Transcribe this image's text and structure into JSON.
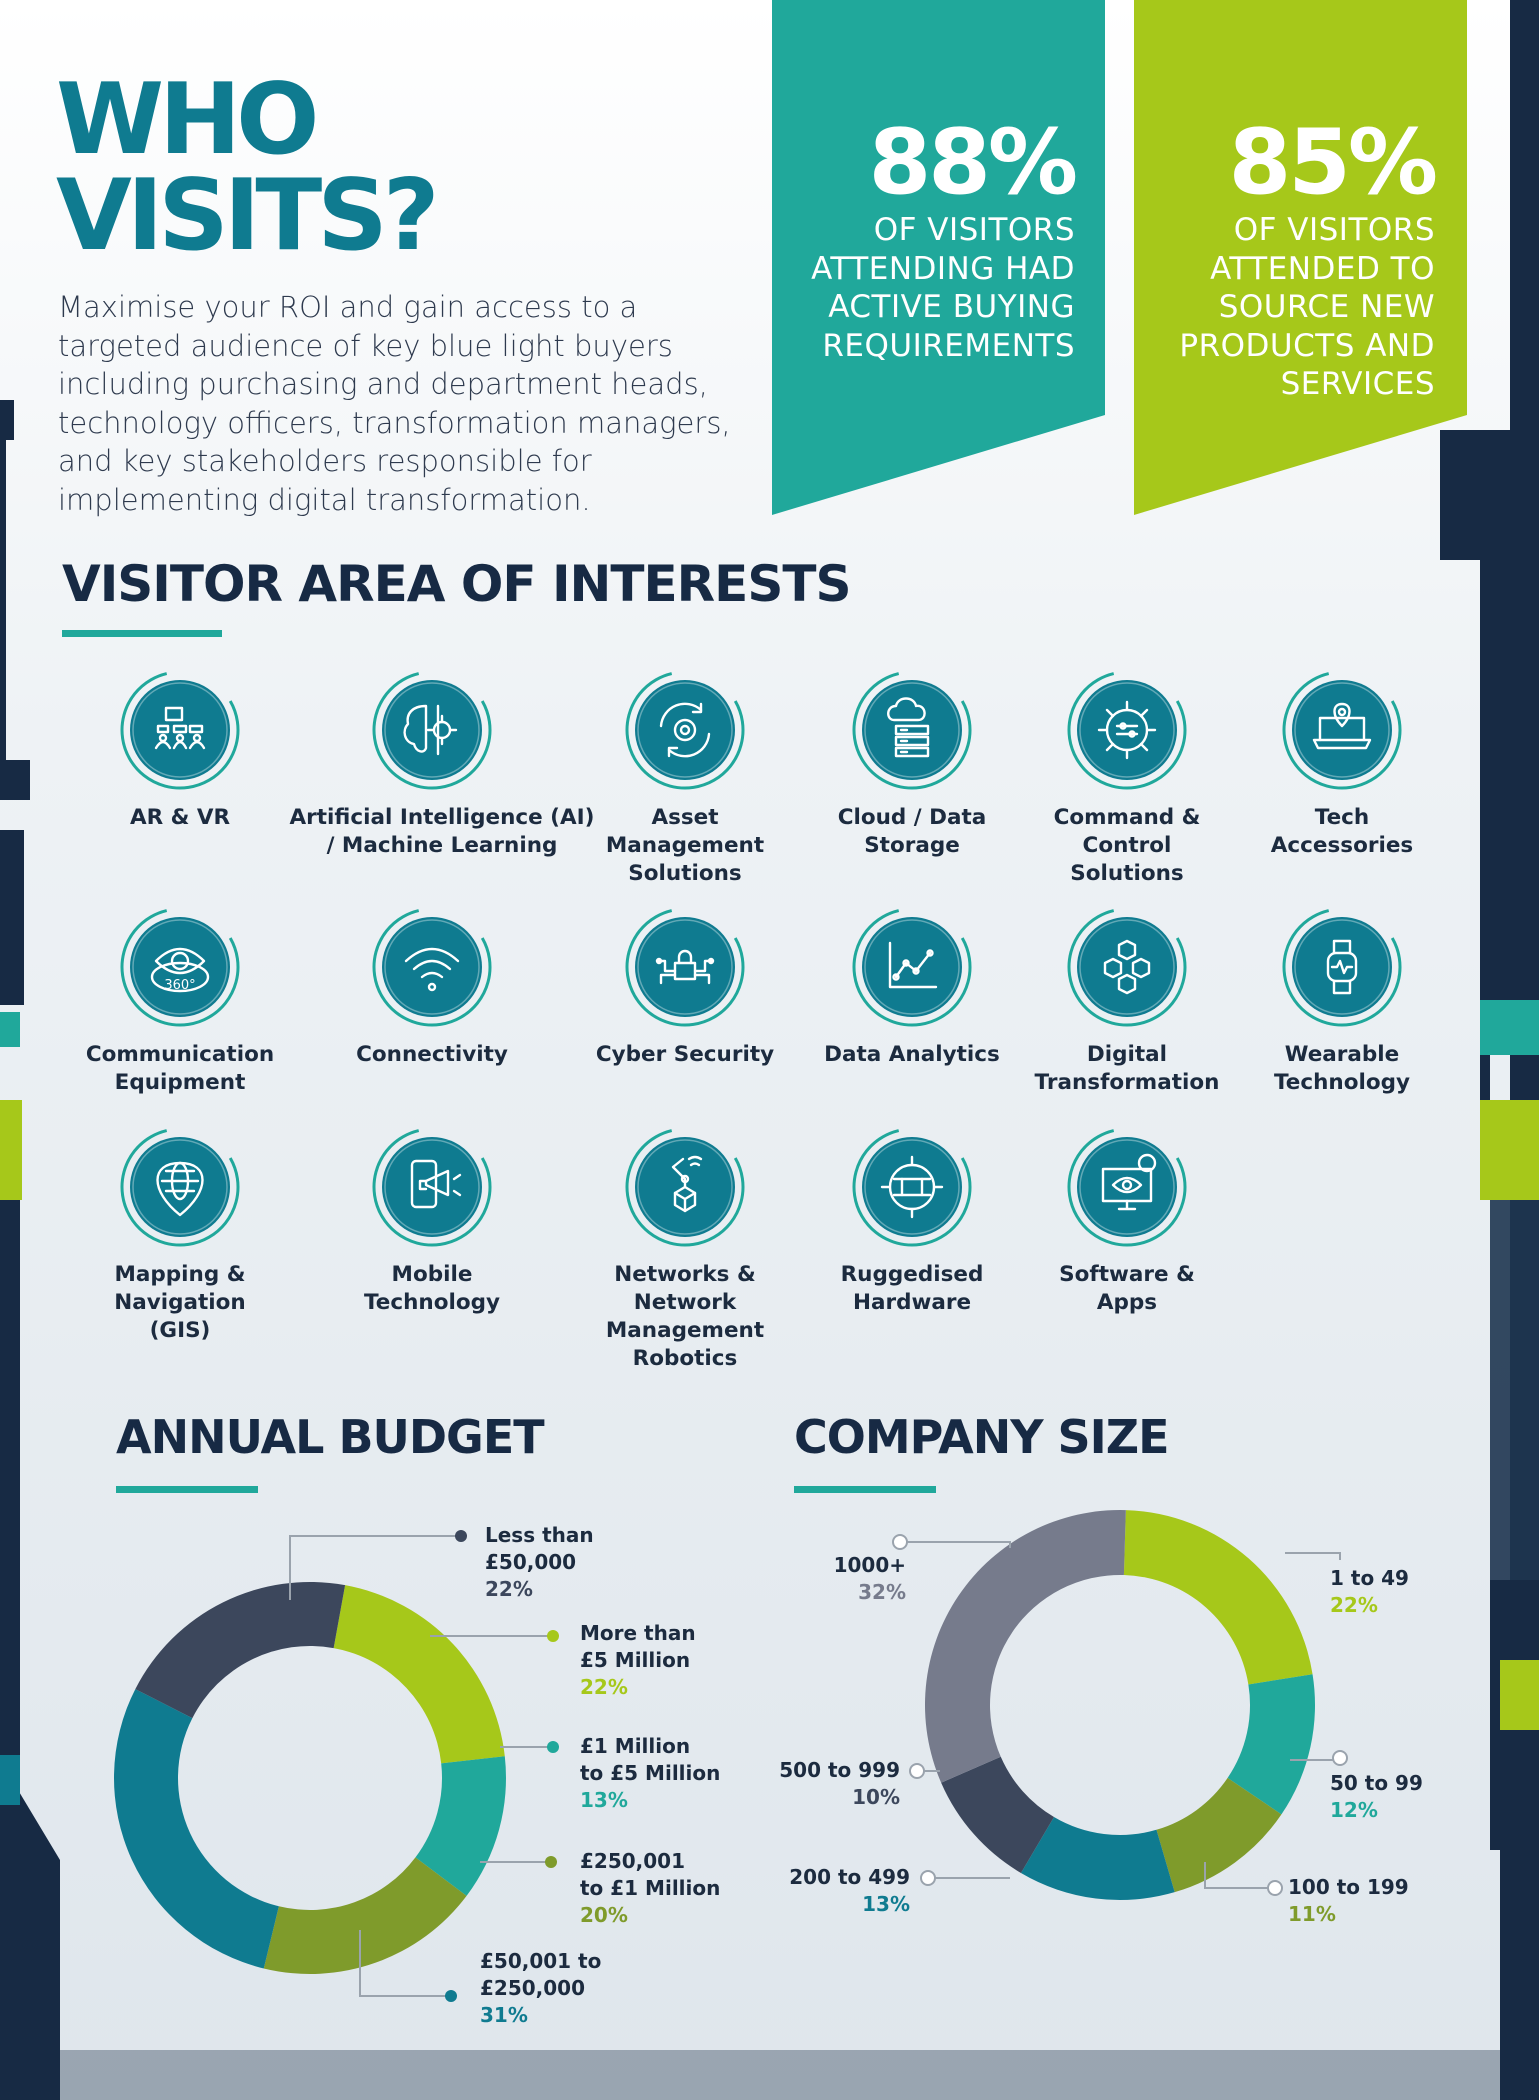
{
  "header": {
    "title_line1": "WHO",
    "title_line2": "VISITS?",
    "intro": "Maximise your ROI and gain access to a targeted audience of key blue light buyers including purchasing and department heads, technology officers, transformation managers, and key stakeholders responsible for implementing digital transformation."
  },
  "stats": [
    {
      "value": "88%",
      "text": "OF VISITORS ATTENDING HAD ACTIVE BUYING REQUIREMENTS",
      "color": "#20a89b"
    },
    {
      "value": "85%",
      "text": "OF VISITORS ATTENDED TO SOURCE NEW PRODUCTS AND SERVICES",
      "color": "#a6c81a"
    }
  ],
  "interests": {
    "heading": "VISITOR AREA OF INTERESTS",
    "items": [
      {
        "label": "AR & VR",
        "icon": "vr-headset-icon"
      },
      {
        "label": "Artificial Intelligence (AI) / Machine Learning",
        "icon": "brain-gear-icon"
      },
      {
        "label": "Asset Management Solutions",
        "icon": "cycle-gear-icon"
      },
      {
        "label": "Cloud / Data Storage",
        "icon": "cloud-server-icon"
      },
      {
        "label": "Command & Control Solutions",
        "icon": "control-gear-icon"
      },
      {
        "label": "Tech Accessories",
        "icon": "laptop-pin-icon"
      },
      {
        "label": "Communication Equipment",
        "icon": "eye-360-icon"
      },
      {
        "label": "Connectivity",
        "icon": "wifi-icon"
      },
      {
        "label": "Cyber Security",
        "icon": "padlock-circuit-icon"
      },
      {
        "label": "Data Analytics",
        "icon": "line-graph-icon"
      },
      {
        "label": "Digital Transformation",
        "icon": "cubes-icon"
      },
      {
        "label": "Wearable Technology",
        "icon": "smartwatch-icon"
      },
      {
        "label": "Mapping & Navigation (GIS)",
        "icon": "globe-pin-icon"
      },
      {
        "label": "Mobile Technology",
        "icon": "phone-megaphone-icon"
      },
      {
        "label": "Networks & Network Management Robotics",
        "icon": "robot-arm-icon"
      },
      {
        "label": "Ruggedised Hardware",
        "icon": "chip-gear-icon"
      },
      {
        "label": "Software & Apps",
        "icon": "monitor-eye-icon"
      }
    ]
  },
  "budget": {
    "heading": "ANNUAL BUDGET",
    "segments": [
      {
        "label": "Less than £50,000",
        "label_lines": [
          "Less than",
          "£50,000"
        ],
        "value": 22,
        "pct": "22%",
        "color": "#3c475c"
      },
      {
        "label": "More than £5 Million",
        "label_lines": [
          "More than",
          "£5 Million"
        ],
        "value": 22,
        "pct": "22%",
        "color": "#a6c81a"
      },
      {
        "label": "£1 Million to £5 Million",
        "label_lines": [
          "£1 Million",
          "to £5 Million"
        ],
        "value": 13,
        "pct": "13%",
        "color": "#20a89b"
      },
      {
        "label": "£250,001 to £1 Million",
        "label_lines": [
          "£250,001",
          "to £1 Million"
        ],
        "value": 20,
        "pct": "20%",
        "color": "#7f9b2b"
      },
      {
        "label": "£50,001 to £250,000",
        "label_lines": [
          "£50,001 to",
          "£250,000"
        ],
        "value": 31,
        "pct": "31%",
        "color": "#0f7b90"
      }
    ]
  },
  "company_size": {
    "heading": "COMPANY SIZE",
    "segments": [
      {
        "label": "1 to 49",
        "value": 22,
        "pct": "22%",
        "color": "#a6c81a"
      },
      {
        "label": "50 to 99",
        "value": 12,
        "pct": "12%",
        "color": "#20a89b"
      },
      {
        "label": "100 to 199",
        "value": 11,
        "pct": "11%",
        "color": "#7f9b2b"
      },
      {
        "label": "200 to 499",
        "value": 13,
        "pct": "13%",
        "color": "#0f7b90"
      },
      {
        "label": "500 to 999",
        "value": 10,
        "pct": "10%",
        "color": "#3c475c"
      },
      {
        "label": "1000+",
        "value": 32,
        "pct": "32%",
        "color": "#767b8c"
      }
    ]
  },
  "colors": {
    "navy": "#172a44",
    "teal": "#0f7b90",
    "mint": "#20a89b",
    "lime": "#a6c81a",
    "olive": "#7f9b2b",
    "slate": "#3c475c",
    "grey": "#767b8c"
  }
}
